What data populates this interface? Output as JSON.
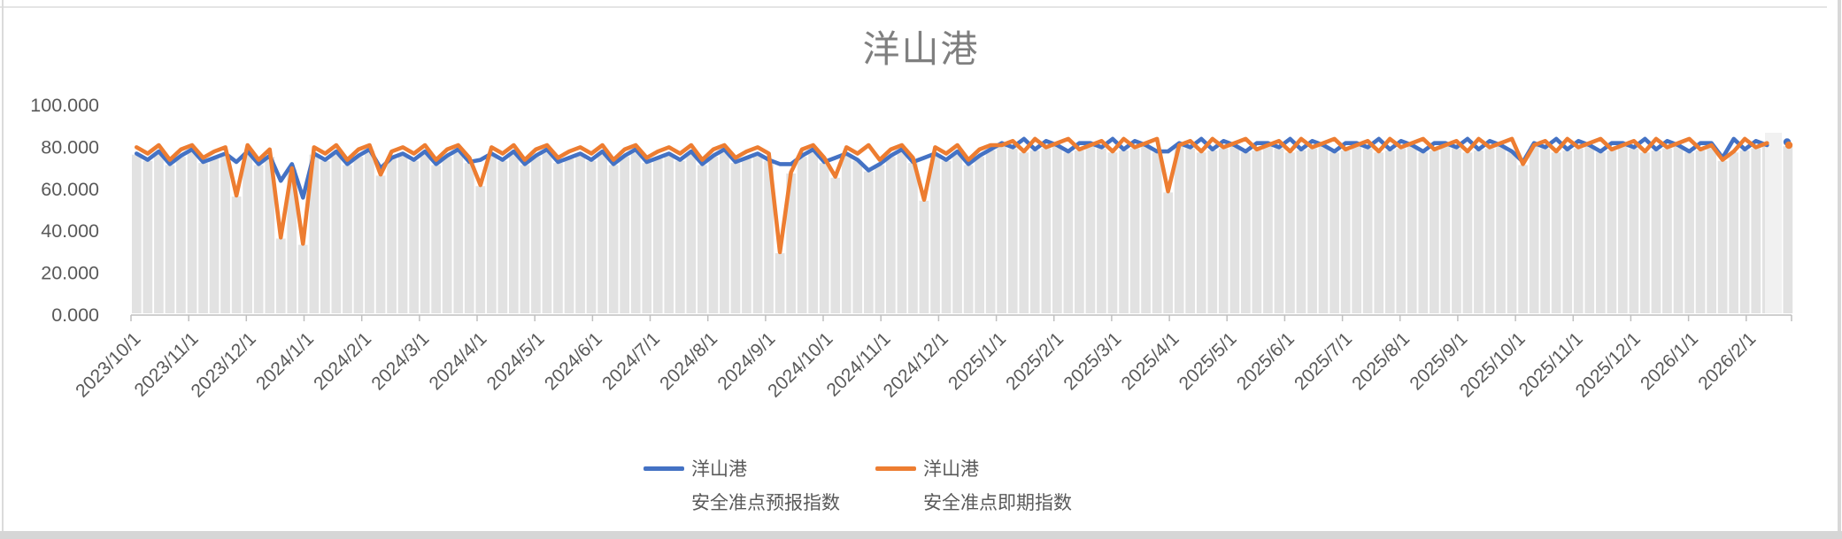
{
  "colors": {
    "series_forecast_blue": "#4472C4",
    "series_spot_orange": "#ED7D31",
    "plot_backdrop_bars": "#e2e2e2",
    "plot_backdrop_light": "#f1f1f1",
    "axis_text": "#595959",
    "title_text": "#7f7f7f",
    "axis_line": "#bfbfbf"
  },
  "chart_data": {
    "type": "line",
    "title": "洋山港",
    "ylabel": "",
    "xlabel": "",
    "ylim": [
      0,
      100
    ],
    "y_tick_labels": [
      "0.000",
      "20.000",
      "40.000",
      "60.000",
      "80.000",
      "100.000"
    ],
    "x_tick_labels": [
      "2023/10/1",
      "2023/11/1",
      "2023/12/1",
      "2024/1/1",
      "2024/2/1",
      "2024/3/1",
      "2024/4/1",
      "2024/5/1",
      "2024/6/1",
      "2024/7/1",
      "2024/8/1",
      "2024/9/1",
      "2024/10/1",
      "2024/11/1",
      "2024/12/1",
      "2025/1/1",
      "2025/2/1",
      "2025/3/1",
      "2025/4/1",
      "2025/5/1",
      "2025/6/1",
      "2025/7/1",
      "2025/8/1",
      "2025/9/1",
      "2025/10/1",
      "2025/11/1",
      "2025/12/1",
      "2026/1/1",
      "2026/2/1"
    ],
    "x_range": {
      "start": "2023/10/1",
      "end": "2026/2/24"
    },
    "x_sampling": "values estimated at approx. 6-day intervals from 2023/10/1; one isolated trailing point at far right",
    "grid": "no horizontal gridlines; dense light-gray backdrop columns under the lines",
    "legend_position": "bottom-center, two wrapped entries",
    "series": [
      {
        "name": "洋山港 安全准点预报指数",
        "legend_lines": [
          "洋山港",
          "安全准点预报指数"
        ],
        "color": "#4472C4",
        "values": [
          77,
          74,
          78,
          72,
          76,
          79,
          73,
          75,
          77,
          73,
          78,
          72,
          76,
          64,
          72,
          56,
          77,
          74,
          78,
          72,
          76,
          79,
          70,
          75,
          77,
          74,
          78,
          72,
          76,
          79,
          73,
          74,
          77,
          74,
          78,
          72,
          76,
          79,
          73,
          75,
          77,
          74,
          78,
          72,
          76,
          79,
          73,
          75,
          77,
          74,
          78,
          72,
          76,
          79,
          73,
          75,
          77,
          74,
          72,
          72,
          76,
          79,
          73,
          75,
          77,
          74,
          69,
          72,
          76,
          79,
          73,
          75,
          77,
          74,
          78,
          72,
          76,
          79,
          82,
          80,
          84,
          79,
          83,
          81,
          78,
          82,
          82,
          80,
          84,
          79,
          83,
          81,
          78,
          78,
          82,
          80,
          84,
          79,
          83,
          81,
          78,
          82,
          82,
          80,
          84,
          79,
          83,
          81,
          78,
          82,
          82,
          80,
          84,
          79,
          83,
          81,
          78,
          82,
          82,
          80,
          84,
          79,
          83,
          81,
          78,
          73,
          82,
          80,
          84,
          79,
          83,
          81,
          78,
          82,
          82,
          80,
          84,
          79,
          83,
          81,
          78,
          82,
          82,
          75,
          84,
          79,
          83,
          81
        ]
      },
      {
        "name": "洋山港 安全准点即期指数",
        "legend_lines": [
          "洋山港",
          "安全准点即期指数"
        ],
        "color": "#ED7D31",
        "values": [
          80,
          77,
          81,
          74,
          79,
          81,
          75,
          78,
          80,
          57,
          81,
          74,
          79,
          37,
          70,
          34,
          80,
          77,
          81,
          74,
          79,
          81,
          67,
          78,
          80,
          77,
          81,
          74,
          79,
          81,
          75,
          62,
          80,
          77,
          81,
          74,
          79,
          81,
          75,
          78,
          80,
          77,
          81,
          74,
          79,
          81,
          75,
          78,
          80,
          77,
          81,
          74,
          79,
          81,
          75,
          78,
          80,
          77,
          30,
          68,
          79,
          81,
          75,
          66,
          80,
          77,
          81,
          74,
          79,
          81,
          75,
          55,
          80,
          77,
          81,
          74,
          79,
          81,
          81,
          83,
          78,
          84,
          80,
          82,
          84,
          79,
          81,
          83,
          78,
          84,
          80,
          82,
          84,
          59,
          81,
          83,
          78,
          84,
          80,
          82,
          84,
          79,
          81,
          83,
          78,
          84,
          80,
          82,
          84,
          79,
          81,
          83,
          78,
          84,
          80,
          82,
          84,
          79,
          81,
          83,
          78,
          84,
          80,
          82,
          84,
          72,
          81,
          83,
          78,
          84,
          80,
          82,
          84,
          79,
          81,
          83,
          78,
          84,
          80,
          82,
          84,
          79,
          81,
          74,
          78,
          84,
          80,
          82
        ]
      }
    ],
    "trailing_point": {
      "forecast_value": 82,
      "spot_value": 81
    }
  }
}
